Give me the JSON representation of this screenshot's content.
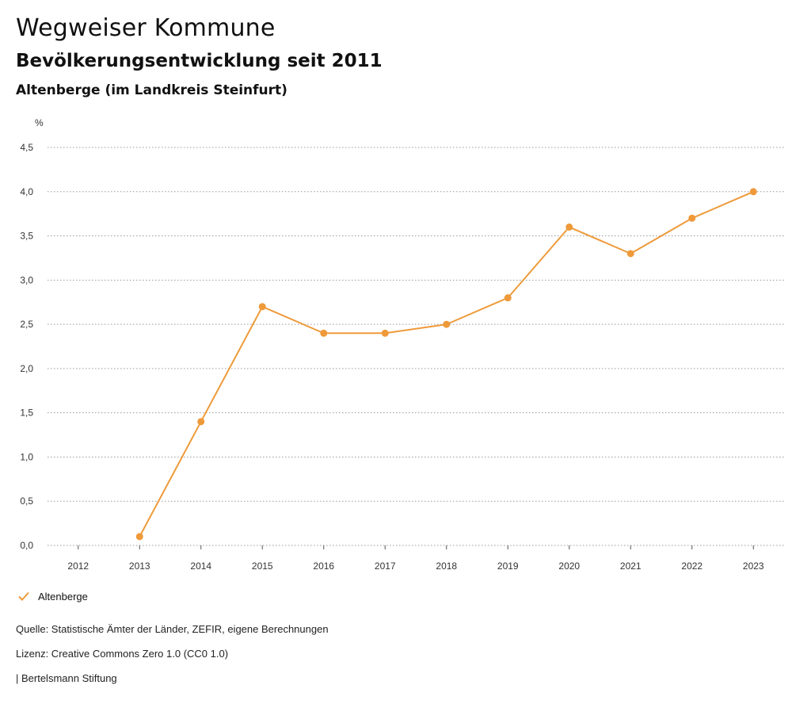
{
  "header": {
    "title": "Wegweiser Kommune",
    "subtitle": "Bevölkerungsentwicklung seit 2011",
    "region": "Altenberge (im Landkreis Steinfurt)"
  },
  "chart_data": {
    "type": "line",
    "ylabel": "%",
    "ylim": [
      0,
      4.5
    ],
    "yticks": [
      "0,0",
      "0,5",
      "1,0",
      "1,5",
      "2,0",
      "2,5",
      "3,0",
      "3,5",
      "4,0",
      "4,5"
    ],
    "ytick_values": [
      0,
      0.5,
      1,
      1.5,
      2,
      2.5,
      3,
      3.5,
      4,
      4.5
    ],
    "categories": [
      "2012",
      "2013",
      "2014",
      "2015",
      "2016",
      "2017",
      "2018",
      "2019",
      "2020",
      "2021",
      "2022",
      "2023"
    ],
    "series": [
      {
        "name": "Altenberge",
        "color": "#ee9a3a",
        "values": [
          null,
          0.1,
          1.4,
          2.7,
          2.4,
          2.4,
          2.5,
          2.8,
          3.6,
          3.3,
          3.7,
          4.0
        ]
      }
    ],
    "grid": true,
    "legend": "bottom-left"
  },
  "legend": {
    "label": "Altenberge",
    "icon": "check-icon"
  },
  "footer": {
    "source": "Quelle: Statistische Ämter der Länder, ZEFIR, eigene Berechnungen",
    "license": "Lizenz: Creative Commons Zero 1.0 (CC0 1.0)",
    "publisher": "| Bertelsmann Stiftung"
  }
}
